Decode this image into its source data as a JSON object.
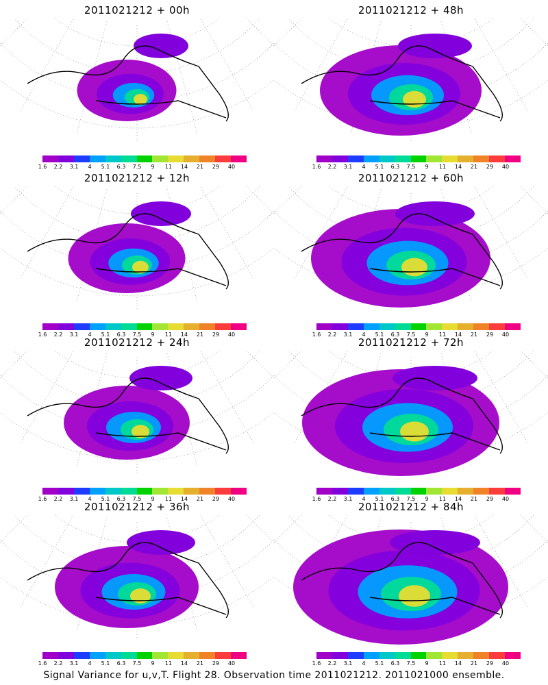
{
  "caption": "Signal Variance for u,v,T. Flight 28. Observation time 2011021212. 2011021000 ensemble.",
  "colorbar": {
    "labels": [
      "1.6",
      "2.2",
      "3.1",
      "4",
      "5.1",
      "6.3",
      "7.5",
      "9",
      "11",
      "14",
      "21",
      "29",
      "40"
    ],
    "colors": [
      "#a000c8",
      "#8200dc",
      "#1e3cff",
      "#00a0ff",
      "#00c8c8",
      "#00dc96",
      "#00d200",
      "#a0e632",
      "#e6dc32",
      "#e6af2d",
      "#f08228",
      "#fa3c3c",
      "#f00082"
    ]
  },
  "chart_data": [
    {
      "type": "heatmap",
      "title": "2011021212 + 00h",
      "intensity": 0.25
    },
    {
      "type": "heatmap",
      "title": "2011021212 + 12h",
      "intensity": 0.35
    },
    {
      "type": "heatmap",
      "title": "2011021212 + 24h",
      "intensity": 0.4
    },
    {
      "type": "heatmap",
      "title": "2011021212 + 36h",
      "intensity": 0.5
    },
    {
      "type": "heatmap",
      "title": "2011021212 + 48h",
      "intensity": 0.6
    },
    {
      "type": "heatmap",
      "title": "2011021212 + 60h",
      "intensity": 0.7
    },
    {
      "type": "heatmap",
      "title": "2011021212 + 72h",
      "intensity": 0.8
    },
    {
      "type": "heatmap",
      "title": "2011021212 + 84h",
      "intensity": 0.9
    }
  ]
}
